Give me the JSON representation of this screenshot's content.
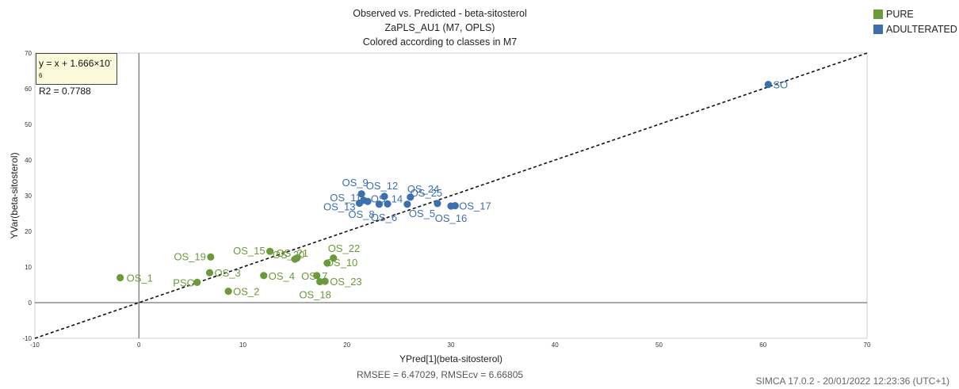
{
  "title": {
    "line1": "Observed vs. Predicted - beta-sitosterol",
    "line2": "ZaPLS_AU1 (M7, OPLS)",
    "line3": "Colored according to classes in M7"
  },
  "legend": [
    {
      "label": "PURE",
      "color": "#6a9a3a"
    },
    {
      "label": "ADULTERATED",
      "color": "#3a6fb0"
    }
  ],
  "equation": {
    "line1_prefix": "y = x + 1.666×10",
    "line1_exp": "-6",
    "line2": "R2 = 0.7788"
  },
  "rmse_text": "RMSEE = 6.47029, RMSEcv = 6.66805",
  "footer": "SIMCA 17.0.2 - 20/01/2022 12:23:36 (UTC+1)",
  "chart_data": {
    "type": "scatter",
    "xlabel": "YPred[1](beta-sitosterol)",
    "ylabel": "YVar(beta-sitosterol)",
    "xlim": [
      -10,
      70
    ],
    "ylim": [
      -10,
      70
    ],
    "xticks": [
      -10,
      0,
      10,
      20,
      30,
      40,
      50,
      60,
      70
    ],
    "yticks": [
      -10,
      0,
      10,
      20,
      30,
      40,
      50,
      60,
      70
    ],
    "reference_line": "y = x",
    "series": [
      {
        "name": "PURE",
        "color": "#6a9a3a",
        "points": [
          {
            "label": "OS_1",
            "x": -1.8,
            "y": 7.0
          },
          {
            "label": "PSO",
            "x": 5.6,
            "y": 5.7
          },
          {
            "label": "OS_3",
            "x": 6.8,
            "y": 8.4
          },
          {
            "label": "OS_19",
            "x": 6.9,
            "y": 12.8
          },
          {
            "label": "OS_2",
            "x": 8.6,
            "y": 3.2
          },
          {
            "label": "OS_15",
            "x": 12.6,
            "y": 14.4
          },
          {
            "label": "OS_4",
            "x": 12.0,
            "y": 7.6
          },
          {
            "label": "OS_21",
            "x": 15.2,
            "y": 12.5
          },
          {
            "label": "OS_20",
            "x": 15.0,
            "y": 12.2
          },
          {
            "label": "OS_7",
            "x": 17.1,
            "y": 7.6
          },
          {
            "label": "OS_18",
            "x": 17.4,
            "y": 5.9
          },
          {
            "label": "OS_23",
            "x": 17.9,
            "y": 6.0
          },
          {
            "label": "OS_10",
            "x": 18.1,
            "y": 11.1
          },
          {
            "label": "OS_22",
            "x": 18.7,
            "y": 12.5
          }
        ]
      },
      {
        "name": "ADULTERATED",
        "color": "#3a6fb0",
        "points": [
          {
            "label": "OS_9",
            "x": 21.4,
            "y": 30.5
          },
          {
            "label": "OS_11",
            "x": 21.6,
            "y": 28.7
          },
          {
            "label": "OS_13",
            "x": 21.2,
            "y": 27.9
          },
          {
            "label": "OS_8",
            "x": 22.0,
            "y": 28.4
          },
          {
            "label": "OS_12",
            "x": 23.6,
            "y": 29.8
          },
          {
            "label": "OS_14",
            "x": 23.9,
            "y": 27.7
          },
          {
            "label": "OS_6",
            "x": 23.1,
            "y": 27.6
          },
          {
            "label": "OS_5",
            "x": 25.8,
            "y": 27.6
          },
          {
            "label": "OS_24",
            "x": 26.1,
            "y": 29.6
          },
          {
            "label": "OS_25",
            "x": 28.7,
            "y": 27.8
          },
          {
            "label": "OS_16",
            "x": 30.0,
            "y": 27.1
          },
          {
            "label": "OS_17",
            "x": 30.4,
            "y": 27.2
          },
          {
            "label": "SO",
            "x": 60.5,
            "y": 61.2
          }
        ]
      }
    ]
  }
}
